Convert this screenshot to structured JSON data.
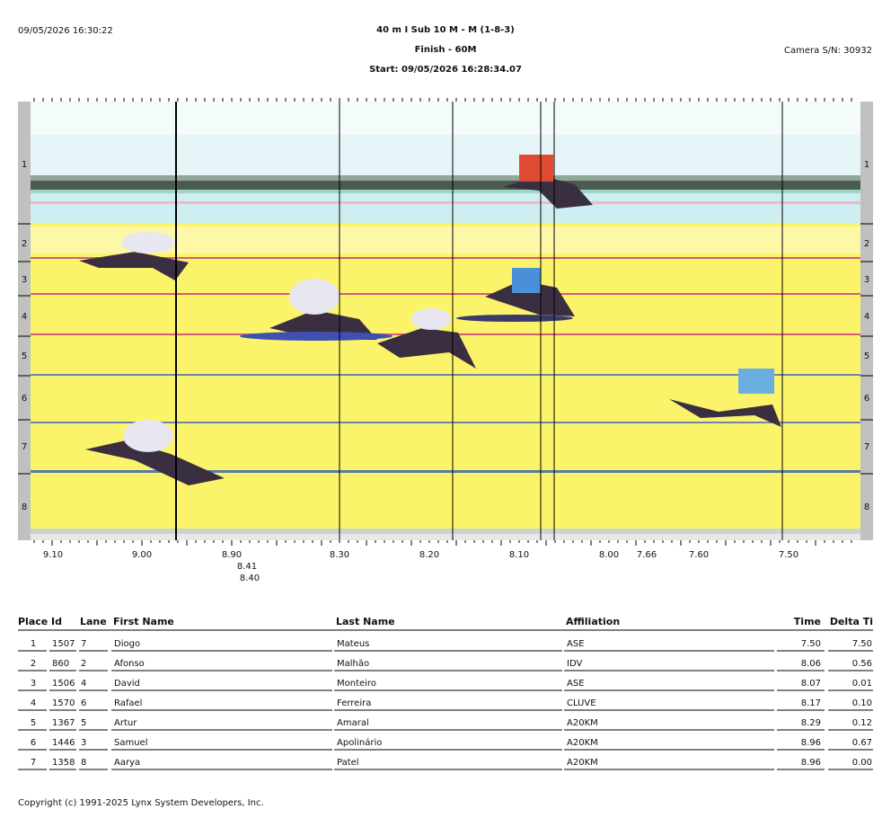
{
  "header": {
    "timestamp": "09/05/2026 16:30:22",
    "title": "40 m I Sub 10 M - M (1-8-3)",
    "subtitle": "Finish - 60M",
    "start": "Start: 09/05/2026 16:28:34.07",
    "camera": "Camera S/N: 30932"
  },
  "photo": {
    "lanes": [
      "1",
      "2",
      "3",
      "4",
      "5",
      "6",
      "7",
      "8"
    ],
    "time_labels": [
      "9.10",
      "9.00",
      "8.90",
      "8.41",
      "8.40",
      "8.30",
      "8.20",
      "8.10",
      "8.00",
      "7.66",
      "7.60",
      "7.50"
    ]
  },
  "table": {
    "columns": [
      "Place",
      "Id",
      "Lane",
      "First Name",
      "Last Name",
      "Affiliation",
      "Time",
      "Delta Ti"
    ],
    "rows": [
      [
        "1",
        "1507",
        "7",
        "Diogo",
        "Mateus",
        "ASE",
        "7.50",
        "7.50"
      ],
      [
        "2",
        "860",
        "2",
        "Afonso",
        "Malhão",
        "IDV",
        "8.06",
        "0.56"
      ],
      [
        "3",
        "1506",
        "4",
        "David",
        "Monteiro",
        "ASE",
        "8.07",
        "0.01"
      ],
      [
        "4",
        "1570",
        "6",
        "Rafael",
        "Ferreira",
        "CLUVE",
        "8.17",
        "0.10"
      ],
      [
        "5",
        "1367",
        "5",
        "Artur",
        "Amaral",
        "A20KM",
        "8.29",
        "0.12"
      ],
      [
        "6",
        "1446",
        "3",
        "Samuel",
        "Apolinário",
        "A20KM",
        "8.96",
        "0.67"
      ],
      [
        "7",
        "1358",
        "8",
        "Aarya",
        "Patel",
        "A20KM",
        "8.96",
        "0.00"
      ]
    ]
  },
  "footer": "Copyright (c) 1991-2025 Lynx System Developers, Inc."
}
